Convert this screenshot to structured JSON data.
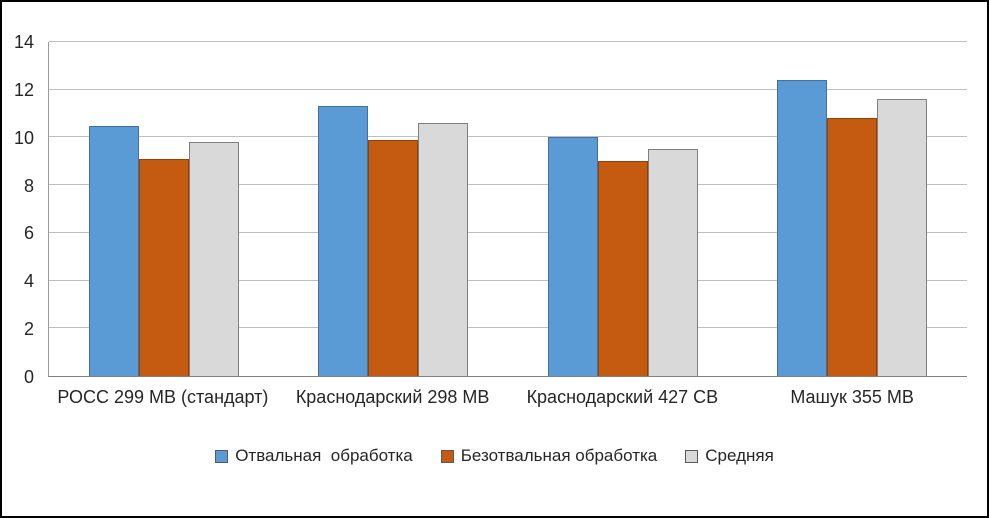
{
  "chart_data": {
    "type": "bar",
    "title": "",
    "categories": [
      "РОСС 299 МВ (стандарт)",
      "Краснодарский 298 МВ",
      "Краснодарский 427 СВ",
      "Машук 355 МВ"
    ],
    "series": [
      {
        "name": "Отвальная  обработка",
        "color": "#5B9BD5",
        "border_color": "#41719C",
        "values": [
          10.5,
          11.3,
          10.0,
          12.4
        ]
      },
      {
        "name": "Безотвальная обработка",
        "color": "#C55A11",
        "border_color": "#8E4109",
        "values": [
          9.1,
          9.9,
          9.0,
          10.8
        ]
      },
      {
        "name": "Средняя",
        "color": "#D9D9D9",
        "border_color": "#7F7F7F",
        "values": [
          9.8,
          10.6,
          9.5,
          11.6
        ]
      }
    ],
    "ylim": [
      0,
      14
    ],
    "yticks": [
      0,
      2,
      4,
      6,
      8,
      10,
      12,
      14
    ],
    "grid": true,
    "legend_position": "bottom",
    "gridline_color": "#bfbfbf",
    "frame_border_color": "#000000"
  }
}
